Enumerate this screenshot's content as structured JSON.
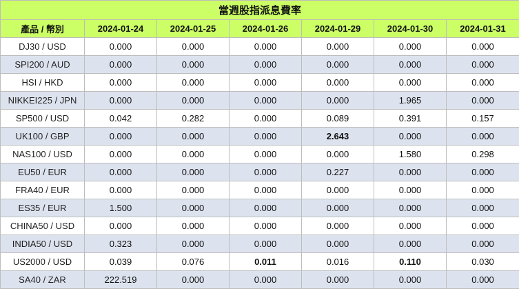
{
  "title": "當週股指派息費率",
  "header": {
    "label": "產品 / 幣別",
    "dates": [
      "2024-01-24",
      "2024-01-25",
      "2024-01-26",
      "2024-01-29",
      "2024-01-30",
      "2024-01-31"
    ]
  },
  "rows": [
    {
      "label": "DJ30 / USD",
      "values": [
        "0.000",
        "0.000",
        "0.000",
        "0.000",
        "0.000",
        "0.000"
      ]
    },
    {
      "label": "SPI200 / AUD",
      "values": [
        "0.000",
        "0.000",
        "0.000",
        "0.000",
        "0.000",
        "0.000"
      ]
    },
    {
      "label": "HSI / HKD",
      "values": [
        "0.000",
        "0.000",
        "0.000",
        "0.000",
        "0.000",
        "0.000"
      ]
    },
    {
      "label": "NIKKEI225 / JPN",
      "values": [
        "0.000",
        "0.000",
        "0.000",
        "0.000",
        "1.965",
        "0.000"
      ]
    },
    {
      "label": "SP500 / USD",
      "values": [
        "0.042",
        "0.282",
        "0.000",
        "0.089",
        "0.391",
        "0.157"
      ]
    },
    {
      "label": "UK100 / GBP",
      "values": [
        "0.000",
        "0.000",
        "0.000",
        "2.643",
        "0.000",
        "0.000"
      ]
    },
    {
      "label": "NAS100 / USD",
      "values": [
        "0.000",
        "0.000",
        "0.000",
        "0.000",
        "1.580",
        "0.298"
      ]
    },
    {
      "label": "EU50 / EUR",
      "values": [
        "0.000",
        "0.000",
        "0.000",
        "0.227",
        "0.000",
        "0.000"
      ]
    },
    {
      "label": "FRA40 / EUR",
      "values": [
        "0.000",
        "0.000",
        "0.000",
        "0.000",
        "0.000",
        "0.000"
      ]
    },
    {
      "label": "ES35 / EUR",
      "values": [
        "1.500",
        "0.000",
        "0.000",
        "0.000",
        "0.000",
        "0.000"
      ]
    },
    {
      "label": "CHINA50 / USD",
      "values": [
        "0.000",
        "0.000",
        "0.000",
        "0.000",
        "0.000",
        "0.000"
      ]
    },
    {
      "label": "INDIA50 / USD",
      "values": [
        "0.323",
        "0.000",
        "0.000",
        "0.000",
        "0.000",
        "0.000"
      ]
    },
    {
      "label": "US2000 / USD",
      "values": [
        "0.039",
        "0.076",
        "0.011",
        "0.016",
        "0.110",
        "0.030"
      ]
    },
    {
      "label": "SA40 / ZAR",
      "values": [
        "222.519",
        "0.000",
        "0.000",
        "0.000",
        "0.000",
        "0.000"
      ]
    }
  ],
  "bold_cells": [
    [
      5,
      3
    ],
    [
      12,
      2
    ],
    [
      12,
      4
    ]
  ],
  "colors": {
    "header_bg": "#ccff66",
    "alt_row_bg": "#dde3ee",
    "row_bg": "#ffffff",
    "border": "#bdbdbd"
  }
}
